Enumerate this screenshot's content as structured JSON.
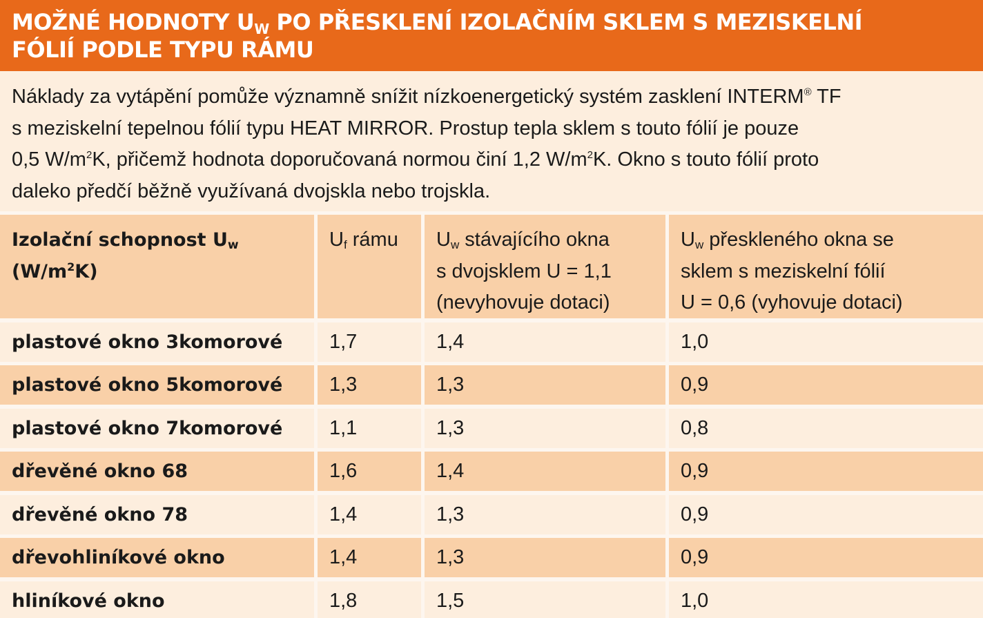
{
  "title": {
    "part1": "Možné hodnoty U",
    "sub": "w",
    "part2": " po přesklení izolačním sklem s meziskelní",
    "line2": "fólií podle typu rámu"
  },
  "intro": {
    "line1_a": "Náklady za vytápění pomůže významně snížit nízkoenergetický systém zasklení INTERM",
    "line1_sup": "®",
    "line1_b": " TF",
    "line2": "s meziskelní tepelnou fólií typu HEAT MIRROR. Prostup tepla sklem s touto fólií je pouze",
    "line3_a": "0,5 W/m",
    "line3_sup1": "2",
    "line3_b": "K, přičemž hodnota doporučovaná normou činí 1,2 W/m",
    "line3_sup2": "2",
    "line3_c": "K. Okno s touto fólií proto",
    "line4": "daleko předčí běžně využívaná dvojskla nebo trojskla."
  },
  "table": {
    "headers": {
      "c1_line1": "Izolační schopnost U",
      "c1_sub": "w",
      "c1_line2_a": "(W/m",
      "c1_line2_sup": "2",
      "c1_line2_b": "K)",
      "c2_a": "U",
      "c2_sub": "f",
      "c2_b": " rámu",
      "c3_line1_a": "U",
      "c3_line1_sub": "w",
      "c3_line1_b": " stávajícího okna",
      "c3_line2": "s dvojsklem U = 1,1",
      "c3_line3": "(nevyhovuje dotaci)",
      "c4_line1_a": "U",
      "c4_line1_sub": "w",
      "c4_line1_b": " přeskleného okna se",
      "c4_line2": "sklem s meziskelní fólií",
      "c4_line3": "U = 0,6 (vyhovuje dotaci)"
    },
    "rows": [
      {
        "label": "plastové okno 3komorové",
        "uf": "1,7",
        "uw_old": "1,4",
        "uw_new": "1,0"
      },
      {
        "label": "plastové okno 5komorové",
        "uf": "1,3",
        "uw_old": "1,3",
        "uw_new": "0,9"
      },
      {
        "label": "plastové okno 7komorové",
        "uf": "1,1",
        "uw_old": "1,3",
        "uw_new": "0,8"
      },
      {
        "label": "dřevěné okno 68",
        "uf": "1,6",
        "uw_old": "1,4",
        "uw_new": "0,9"
      },
      {
        "label": "dřevěné okno 78",
        "uf": "1,4",
        "uw_old": "1,3",
        "uw_new": "0,9"
      },
      {
        "label": "dřevohliníkové okno",
        "uf": "1,4",
        "uw_old": "1,3",
        "uw_new": "0,9"
      },
      {
        "label": "hliníkové okno",
        "uf": "1,8",
        "uw_old": "1,5",
        "uw_new": "1,0"
      }
    ]
  },
  "colors": {
    "header_bg": "#e8691a",
    "row_dark": "#f9d0a8",
    "row_light": "#fdeede"
  }
}
